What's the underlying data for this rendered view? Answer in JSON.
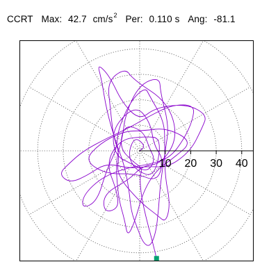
{
  "header": {
    "label": "CCRT",
    "max_label": "Max:",
    "max_value": "42.7",
    "max_unit": "cm/s",
    "max_unit_exp": "2",
    "per_label": "Per:",
    "per_value": "0.110 s",
    "ang_label": "Ang:",
    "ang_value": "-81.1"
  },
  "chart_data": {
    "type": "polar-scatter-trace",
    "quantity": "acceleration",
    "units": "cm/s^2",
    "radial_ticks": [
      10,
      20,
      30,
      40
    ],
    "rmax": 42.7,
    "grid": "dotted polar rings every 10 and radial spokes every 30 deg",
    "colors": {
      "trace": "#8800cc",
      "marker": "#00a070",
      "grid": "#555555",
      "axis": "#000000"
    },
    "max_point": {
      "r": 42.7,
      "angle_deg": -81.1
    },
    "trace_polar": [
      [
        0,
        0
      ],
      [
        3,
        40
      ],
      [
        6,
        110
      ],
      [
        5,
        200
      ],
      [
        8,
        260
      ],
      [
        12,
        300
      ],
      [
        10,
        30
      ],
      [
        6,
        70
      ],
      [
        9,
        150
      ],
      [
        14,
        200
      ],
      [
        18,
        240
      ],
      [
        24,
        250
      ],
      [
        28,
        240
      ],
      [
        22,
        230
      ],
      [
        12,
        250
      ],
      [
        6,
        280
      ],
      [
        10,
        330
      ],
      [
        16,
        20
      ],
      [
        22,
        60
      ],
      [
        28,
        95
      ],
      [
        33,
        100
      ],
      [
        30,
        115
      ],
      [
        20,
        125
      ],
      [
        12,
        150
      ],
      [
        8,
        190
      ],
      [
        13,
        225
      ],
      [
        20,
        270
      ],
      [
        26,
        285
      ],
      [
        30,
        290
      ],
      [
        24,
        300
      ],
      [
        14,
        315
      ],
      [
        10,
        10
      ],
      [
        15,
        50
      ],
      [
        22,
        80
      ],
      [
        25,
        85
      ],
      [
        20,
        100
      ],
      [
        12,
        135
      ],
      [
        9,
        175
      ],
      [
        15,
        210
      ],
      [
        26,
        230
      ],
      [
        32,
        225
      ],
      [
        28,
        218
      ],
      [
        18,
        215
      ],
      [
        8,
        235
      ],
      [
        6,
        290
      ],
      [
        12,
        345
      ],
      [
        18,
        15
      ],
      [
        24,
        30
      ],
      [
        28,
        40
      ],
      [
        22,
        55
      ],
      [
        14,
        75
      ],
      [
        10,
        110
      ],
      [
        14,
        160
      ],
      [
        22,
        180
      ],
      [
        28,
        190
      ],
      [
        33,
        196
      ],
      [
        30,
        205
      ],
      [
        22,
        205
      ],
      [
        14,
        200
      ],
      [
        8,
        240
      ],
      [
        7,
        300
      ],
      [
        13,
        330
      ],
      [
        20,
        0
      ],
      [
        26,
        20
      ],
      [
        30,
        28
      ],
      [
        26,
        45
      ],
      [
        18,
        70
      ],
      [
        12,
        90
      ],
      [
        20,
        110
      ],
      [
        32,
        112
      ],
      [
        38,
        116
      ],
      [
        32,
        118
      ],
      [
        20,
        130
      ],
      [
        10,
        160
      ],
      [
        8,
        220
      ],
      [
        16,
        255
      ],
      [
        24,
        262
      ],
      [
        30,
        268
      ],
      [
        36,
        272
      ],
      [
        38,
        276
      ],
      [
        33,
        281
      ],
      [
        24,
        288
      ],
      [
        16,
        300
      ],
      [
        10,
        0
      ],
      [
        15,
        40
      ],
      [
        24,
        70
      ],
      [
        30,
        75
      ],
      [
        26,
        90
      ],
      [
        16,
        110
      ],
      [
        8,
        150
      ],
      [
        10,
        200
      ],
      [
        20,
        245
      ],
      [
        28,
        258
      ],
      [
        34,
        262
      ],
      [
        28,
        266
      ],
      [
        16,
        275
      ],
      [
        10,
        310
      ],
      [
        14,
        350
      ],
      [
        21,
        10
      ],
      [
        14,
        40
      ],
      [
        8,
        80
      ],
      [
        10,
        130
      ],
      [
        16,
        170
      ],
      [
        22,
        190
      ],
      [
        16,
        215
      ],
      [
        9,
        260
      ],
      [
        14,
        300
      ],
      [
        10,
        340
      ],
      [
        6,
        20
      ],
      [
        12,
        70
      ],
      [
        18,
        95
      ],
      [
        14,
        140
      ],
      [
        10,
        190
      ],
      [
        6,
        240
      ],
      [
        9,
        290
      ],
      [
        7,
        330
      ],
      [
        4,
        10
      ],
      [
        8,
        80
      ],
      [
        12,
        120
      ],
      [
        8,
        170
      ],
      [
        5,
        230
      ],
      [
        7,
        280
      ],
      [
        10,
        270
      ],
      [
        18,
        272
      ],
      [
        28,
        276
      ],
      [
        36,
        278
      ],
      [
        42.7,
        278.9
      ]
    ]
  }
}
